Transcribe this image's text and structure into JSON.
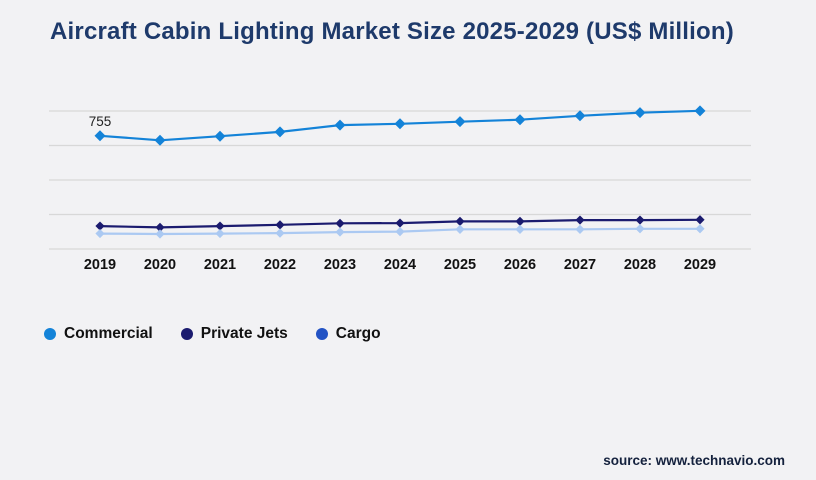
{
  "header": {
    "title": "Aircraft Cabin Lighting Market Size 2025-2029 (US$ Million)",
    "title_color": "#1e3a6b"
  },
  "legend": {
    "items": [
      {
        "label": "Commercial",
        "color": "#1483d8"
      },
      {
        "label": "Private Jets",
        "color": "#1b1b6f"
      },
      {
        "label": "Cargo",
        "color": "#2353c4"
      }
    ]
  },
  "footer": {
    "source_label": "source: www.technavio.com"
  },
  "colors": {
    "background": "#f2f2f4",
    "gridline": "#d8d8d8",
    "axis_label": "#111111",
    "data_label": "#222222"
  },
  "chart_data": {
    "type": "line",
    "title": "Aircraft Cabin Lighting Market Size 2025-2029 (US$ Million)",
    "x": [
      "2019",
      "2020",
      "2021",
      "2022",
      "2023",
      "2024",
      "2025",
      "2026",
      "2027",
      "2028",
      "2029"
    ],
    "series": [
      {
        "name": "Commercial",
        "color": "#1483d8",
        "marker": "diamond",
        "values": [
          755,
          725,
          752,
          781,
          826,
          835,
          849,
          862,
          888,
          909,
          921
        ]
      },
      {
        "name": "Private Jets",
        "color": "#1b1b6f",
        "marker": "diamond",
        "values": [
          153,
          144,
          153,
          161,
          171,
          173,
          184,
          184,
          193,
          193,
          195
        ]
      },
      {
        "name": "Cargo",
        "color": "#2353c4",
        "line_color": "#abc9f2",
        "marker": "diamond",
        "values": [
          103,
          100,
          103,
          106,
          113,
          116,
          131,
          131,
          131,
          135,
          135
        ]
      }
    ],
    "data_labels": [
      {
        "series": "Commercial",
        "x": "2019",
        "text": "755"
      }
    ],
    "xlabel": "",
    "ylabel": "",
    "ylim": [
      0,
      920
    ],
    "grid": true,
    "grid_orientation": "horizontal",
    "legend_position": "bottom"
  }
}
